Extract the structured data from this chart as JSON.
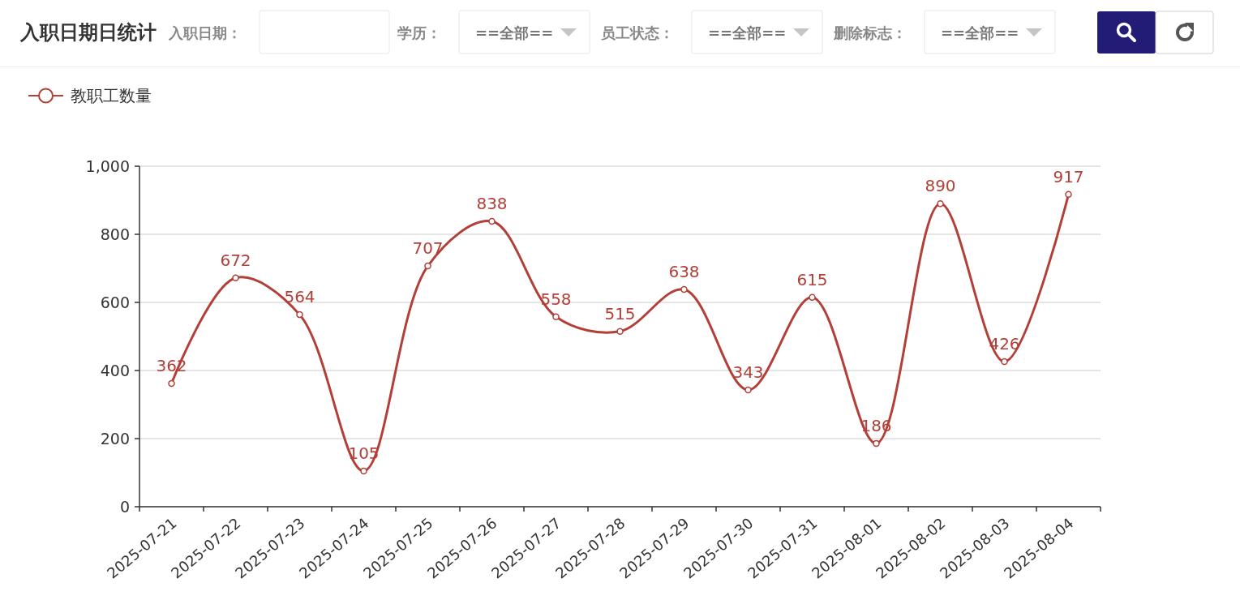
{
  "chart_data": {
    "type": "line",
    "title": "入职日期日统计",
    "annotations": [
      "入职日期：",
      "学历：",
      "==全部==",
      "员工状态：",
      "==全部==",
      "删除标志：",
      "==全部=="
    ],
    "categories": [
      "2025-07-21",
      "2025-07-22",
      "2025-07-23",
      "2025-07-24",
      "2025-07-25",
      "2025-07-26",
      "2025-07-27",
      "2025-07-28",
      "2025-07-29",
      "2025-07-30",
      "2025-07-31",
      "2025-08-01",
      "2025-08-02",
      "2025-08-03",
      "2025-08-04"
    ],
    "series": [
      {
        "name": "教职工数量",
        "color": "#b23f38",
        "values": [
          362,
          672,
          564,
          105,
          707,
          838,
          558,
          515,
          638,
          343,
          615,
          186,
          890,
          426,
          917
        ]
      }
    ],
    "ylim": [
      0,
      1000
    ],
    "yticks": [
      0,
      200,
      400,
      600,
      800,
      {
        "value": 1000,
        "label": "1,000"
      }
    ],
    "grid": "y",
    "legend": "top left",
    "marker": "circle",
    "data_labels": true
  }
}
